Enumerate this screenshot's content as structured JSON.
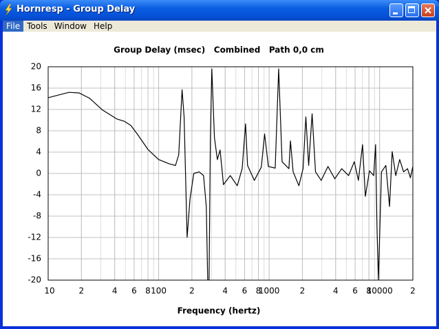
{
  "window": {
    "title": "Hornresp - Group Delay",
    "menu": [
      "File",
      "Tools",
      "Window",
      "Help"
    ]
  },
  "chart_data": {
    "type": "line",
    "title": "Group Delay (msec)   Combined   Path 0,0 cm",
    "x_label": "Frequency (hertz)",
    "x_scale": "log",
    "xlim": [
      10,
      20000
    ],
    "ylim": [
      -20,
      20
    ],
    "xticks": [
      10,
      {
        "value": 20,
        "label": "2"
      },
      {
        "value": 40,
        "label": "4"
      },
      {
        "value": 60,
        "label": "6"
      },
      {
        "value": 80,
        "label": "8"
      },
      100,
      {
        "value": 200,
        "label": "2"
      },
      {
        "value": 400,
        "label": "4"
      },
      {
        "value": 600,
        "label": "6"
      },
      {
        "value": 800,
        "label": "8"
      },
      1000,
      {
        "value": 2000,
        "label": "2"
      },
      {
        "value": 4000,
        "label": "4"
      },
      {
        "value": 6000,
        "label": "6"
      },
      {
        "value": 8000,
        "label": "8"
      },
      10000,
      {
        "value": 20000,
        "label": "2"
      }
    ],
    "yticks": [
      -20,
      -16,
      -12,
      -8,
      -4,
      0,
      4,
      8,
      12,
      16,
      20
    ],
    "grid": true,
    "series": [
      {
        "color": "#000000",
        "x": [
          10,
          15.4,
          19,
          23.7,
          31,
          42,
          48.6,
          56,
          64,
          80,
          100,
          125,
          142,
          152,
          163,
          170,
          181,
          192,
          208,
          233,
          255,
          270,
          278,
          286,
          294,
          303,
          320,
          340,
          360,
          386,
          445,
          515,
          570,
          612,
          638,
          735,
          850,
          910,
          985,
          1135,
          1220,
          1310,
          1510,
          1560,
          1650,
          1860,
          2030,
          2150,
          2280,
          2450,
          2630,
          2960,
          3410,
          3930,
          4540,
          5240,
          5900,
          6430,
          7010,
          7430,
          8100,
          8840,
          9200,
          9470,
          9750,
          10400,
          11400,
          12300,
          13000,
          14000,
          15200,
          16500,
          17900,
          19000,
          20000
        ],
        "values": [
          14.2,
          15.2,
          15.1,
          14.1,
          11.9,
          10.2,
          9.8,
          9.0,
          7.4,
          4.5,
          2.6,
          1.8,
          1.5,
          3.5,
          15.7,
          10.6,
          -12,
          -4.9,
          0,
          0.3,
          -0.4,
          -6.2,
          -20,
          -20,
          6.7,
          19.6,
          6.7,
          2.6,
          4.4,
          -2.1,
          -0.4,
          -2.3,
          0.9,
          9.3,
          1.5,
          -1.3,
          1.2,
          7.4,
          1.3,
          1,
          19.6,
          2.2,
          0.9,
          6.1,
          0.3,
          -2.3,
          0.9,
          10.6,
          1.5,
          11.2,
          0.3,
          -1.3,
          1.3,
          -1,
          0.9,
          -0.4,
          2.2,
          -1.3,
          5.4,
          -4.3,
          0.5,
          -0.4,
          5.4,
          -10.1,
          -20,
          0.3,
          1.5,
          -6.2,
          4.1,
          -0.4,
          2.6,
          0.3,
          0.9,
          -0.8,
          1.3
        ]
      }
    ]
  }
}
